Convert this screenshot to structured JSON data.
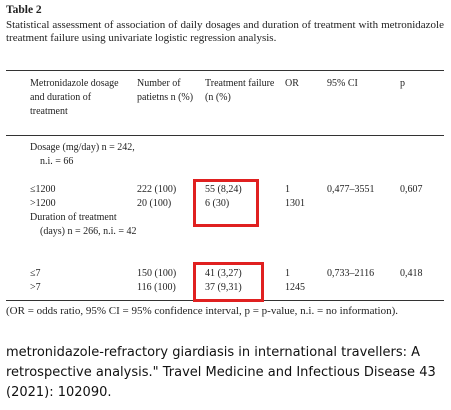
{
  "title": "Table 2",
  "caption": "Statistical assessment of association of daily dosages and duration of treatment with metronidazole treatment failure using univariate logistic regression analysis.",
  "table": {
    "headers": [
      "Metronidazole dosage and duration of treatment",
      "Number of patietns n (%)",
      "Treatment failure (n (%)",
      "OR",
      "95% CI",
      "p"
    ],
    "rows": [
      {
        "label": "Dosage (mg/day) n = 242, n.i. = 66"
      },
      {
        "label": "≤1200",
        "patients": "222 (100)",
        "failure": "55 (8,24)",
        "or": "1",
        "ci": "0,477–3551",
        "p": "0,607"
      },
      {
        "label": ">1200",
        "patients": "20 (100)",
        "failure": "6 (30)",
        "or": "1301"
      },
      {
        "label": "Duration of treatment (days) n = 266, n.i. = 42"
      },
      {
        "label": "≤7",
        "patients": "150 (100)",
        "failure": "41 (3,27)",
        "or": "1",
        "ci": "0,733–2116",
        "p": "0,418"
      },
      {
        "label": ">7",
        "patients": "116 (100)",
        "failure": "37 (9,31)",
        "or": "1245"
      }
    ]
  },
  "footnote": "(OR = odds ratio, 95% CI = 95% confidence interval, p = p-value, n.i. = no information).",
  "citation": "metronidazole-refractory giardiasis in international travellers: A retrospective analysis.\" Travel Medicine and Infectious Disease 43 (2021): 102090."
}
